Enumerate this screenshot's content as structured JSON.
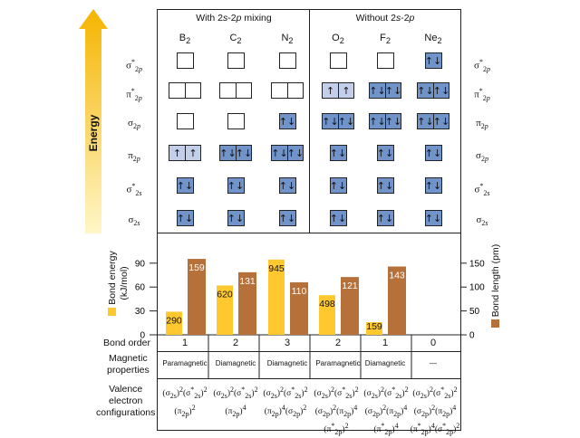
{
  "energy_label": "Energy",
  "headers": {
    "with_mixing": "With 2s-2p mixing",
    "without_mixing": "Without 2s-2p"
  },
  "molecules": [
    "B2",
    "C2",
    "N2",
    "O2",
    "F2",
    "Ne2"
  ],
  "orbitals_left": [
    "σ*2p",
    "π*2p",
    "σ2p",
    "π2p",
    "σ*2s",
    "σ2s"
  ],
  "orbitals_right": [
    "σ*2p",
    "π*2p",
    "π2p",
    "σ2p",
    "σ*2s",
    "σ2s"
  ],
  "orbital_fill": [
    [
      [
        ""
      ],
      [
        "",
        ""
      ],
      [
        ""
      ],
      [
        "↑",
        "↑"
      ],
      [
        "↑↓"
      ],
      [
        "↑↓"
      ]
    ],
    [
      [
        ""
      ],
      [
        "",
        ""
      ],
      [
        ""
      ],
      [
        "↑↓",
        "↑↓"
      ],
      [
        "↑↓"
      ],
      [
        "↑↓"
      ]
    ],
    [
      [
        ""
      ],
      [
        "",
        ""
      ],
      [
        "↑↓"
      ],
      [
        "↑↓",
        "↑↓"
      ],
      [
        "↑↓"
      ],
      [
        "↑↓"
      ]
    ],
    [
      [
        ""
      ],
      [
        "↑",
        "↑"
      ],
      [
        "↑↓",
        "↑↓"
      ],
      [
        "↑↓"
      ],
      [
        "↑↓"
      ],
      [
        "↑↓"
      ]
    ],
    [
      [
        ""
      ],
      [
        "↑↓",
        "↑↓"
      ],
      [
        "↑↓",
        "↑↓"
      ],
      [
        "↑↓"
      ],
      [
        "↑↓"
      ],
      [
        "↑↓"
      ]
    ],
    [
      [
        "↑↓"
      ],
      [
        "↑↓",
        "↑↓"
      ],
      [
        "↑↓",
        "↑↓"
      ],
      [
        "↑↓"
      ],
      [
        "↑↓"
      ],
      [
        "↑↓"
      ]
    ]
  ],
  "chart_data": {
    "type": "bar",
    "categories": [
      "B2",
      "C2",
      "N2",
      "O2",
      "F2",
      "Ne2"
    ],
    "series": [
      {
        "name": "Bond energy (kJ/mol)",
        "values": [
          290,
          620,
          945,
          498,
          159,
          null
        ],
        "color": "#ffc82e",
        "axis": "left"
      },
      {
        "name": "Bond length (pm)",
        "values": [
          159,
          131,
          110,
          121,
          143,
          null
        ],
        "color": "#b6703a",
        "axis": "right"
      }
    ],
    "ylabel_left": "Bond energy (kJ/mol)",
    "ylabel_right": "Bond length (pm)",
    "left_ticks": [
      "0",
      "30",
      "60",
      "90"
    ],
    "right_ticks": [
      "0",
      "50",
      "100",
      "150"
    ]
  },
  "bond_order": {
    "label": "Bond order",
    "values": [
      "1",
      "2",
      "3",
      "2",
      "1",
      "0"
    ]
  },
  "magnetic": {
    "label1": "Magnetic",
    "label2": "properties",
    "values": [
      "Paramagnetic",
      "Diamagnetic",
      "Diamagnetic",
      "Paramagnetic",
      "Diamagnetic",
      "—"
    ]
  },
  "valence": {
    "label1": "Valence",
    "label2": "electron",
    "label3": "configurations"
  }
}
